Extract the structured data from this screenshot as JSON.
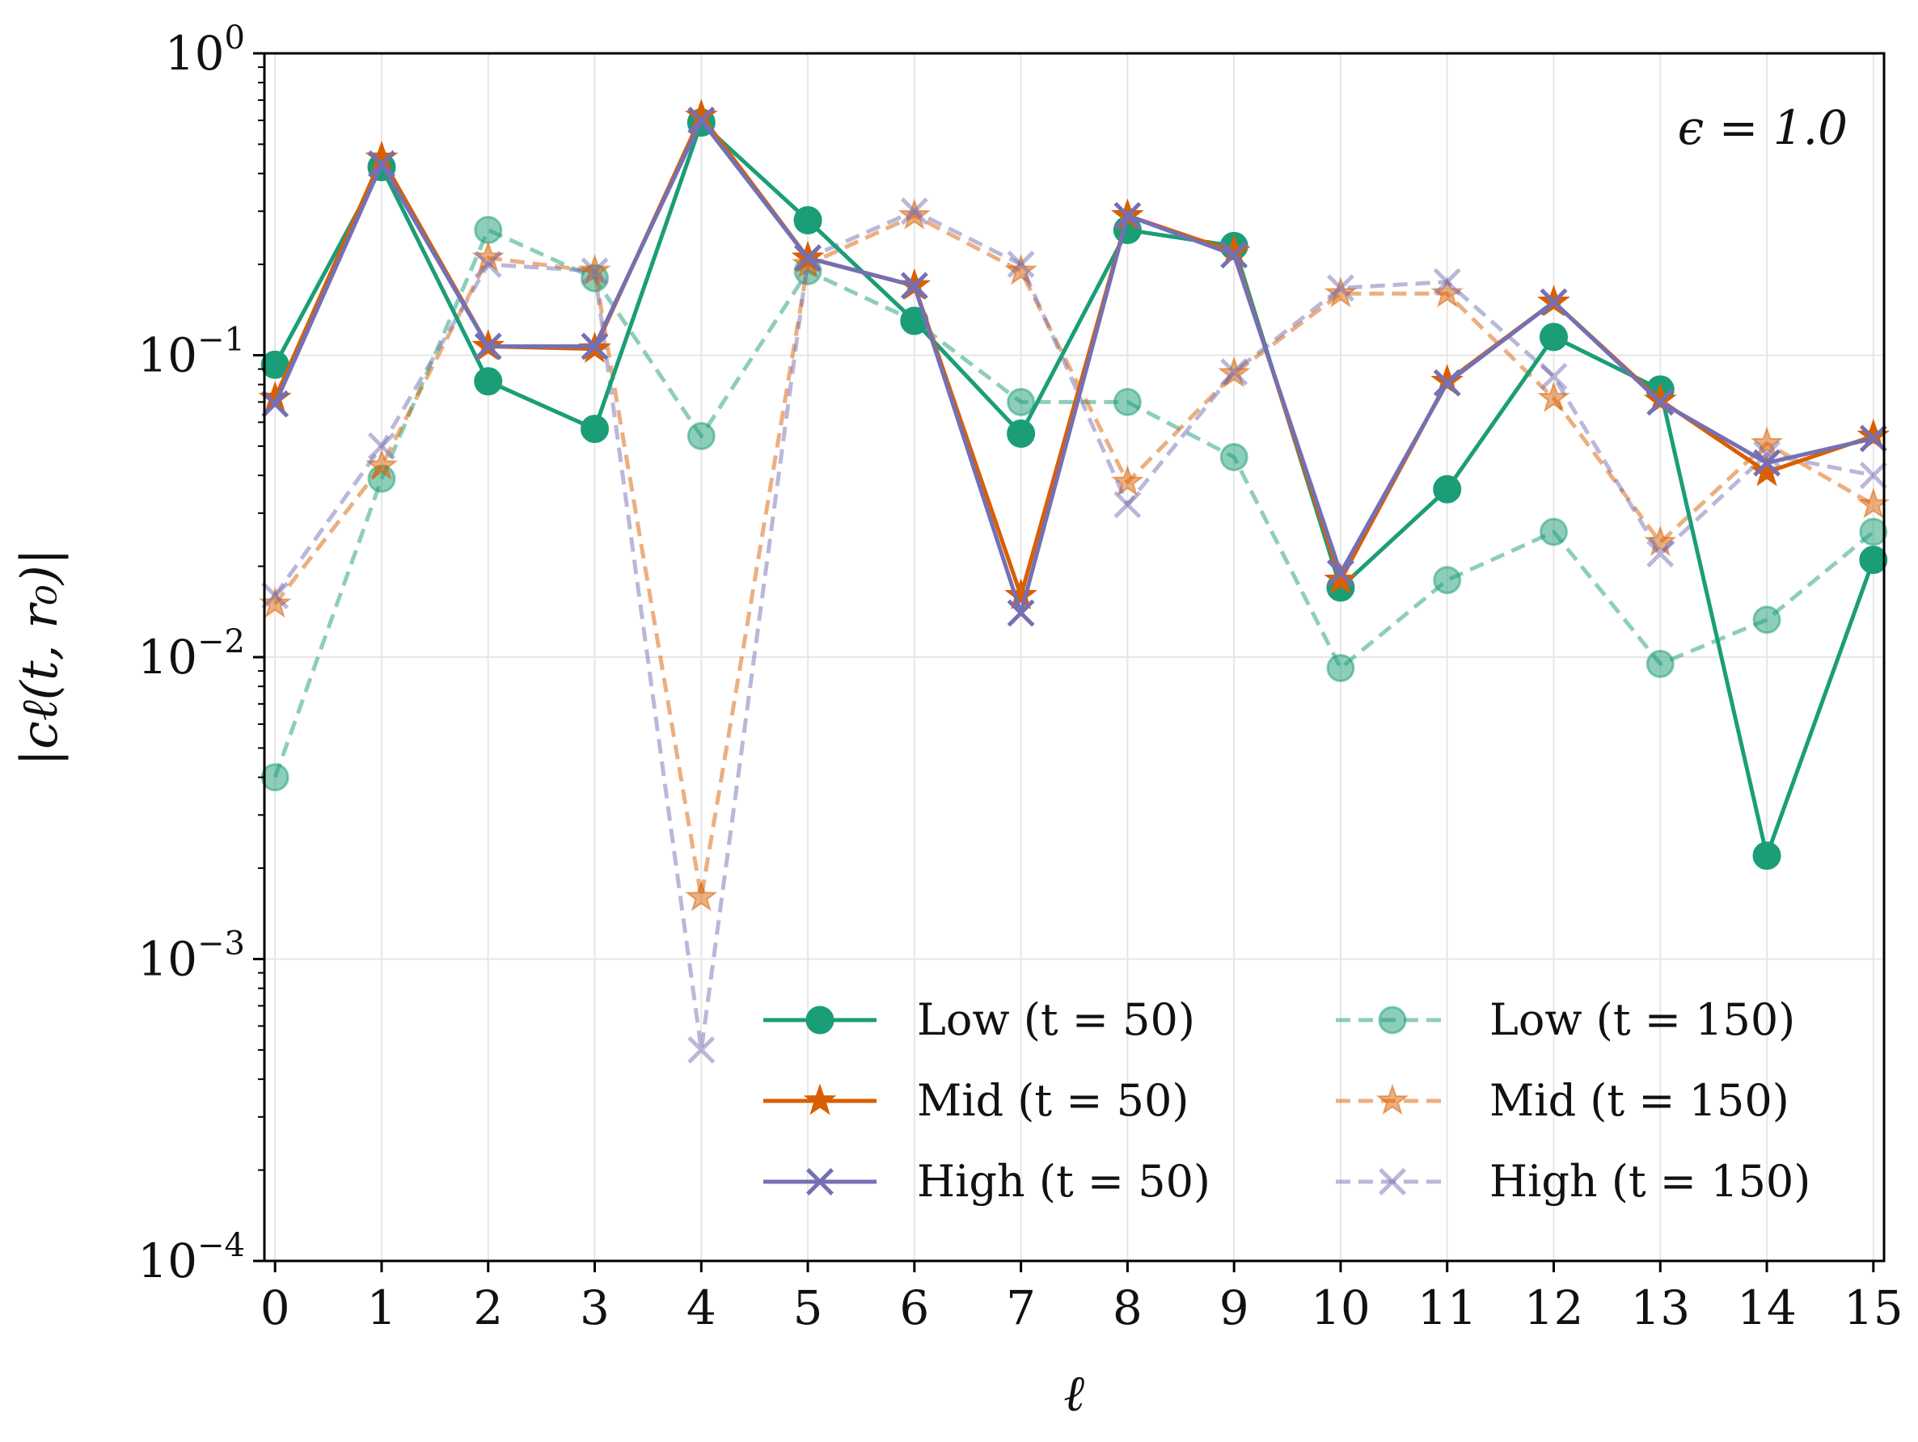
{
  "chart_data": {
    "type": "line",
    "title": "",
    "xlabel": "ℓ",
    "ylabel": "|cℓ(t, r₀)|",
    "yscale": "log",
    "xlim": [
      -0.1,
      15.1
    ],
    "ylim": [
      0.0001,
      1
    ],
    "xticks": [
      0,
      1,
      2,
      3,
      4,
      5,
      6,
      7,
      8,
      9,
      10,
      11,
      12,
      13,
      14,
      15
    ],
    "xtick_labels": [
      "0",
      "1",
      "2",
      "3",
      "4",
      "5",
      "6",
      "7",
      "8",
      "9",
      "10",
      "11",
      "12",
      "13",
      "14",
      "15"
    ],
    "yticks": [
      0.0001,
      0.001,
      0.01,
      0.1,
      1
    ],
    "ytick_labels": [
      {
        "base": "10",
        "exp": "−4"
      },
      {
        "base": "10",
        "exp": "−3"
      },
      {
        "base": "10",
        "exp": "−2"
      },
      {
        "base": "10",
        "exp": "−1"
      },
      {
        "base": "10",
        "exp": "0"
      }
    ],
    "annotation": "ϵ = 1.0",
    "grid": true,
    "legend_position": "lower-right",
    "x": [
      0,
      1,
      2,
      3,
      4,
      5,
      6,
      7,
      8,
      9,
      10,
      11,
      12,
      13,
      14,
      15
    ],
    "series": [
      {
        "name": "Low  (t = 50)",
        "color": "#1b9e77",
        "marker": "circle",
        "dash": "solid",
        "alpha": 1.0,
        "values": [
          0.093,
          0.42,
          0.082,
          0.057,
          0.59,
          0.28,
          0.13,
          0.055,
          0.26,
          0.23,
          0.017,
          0.036,
          0.115,
          0.077,
          0.0022,
          0.021
        ]
      },
      {
        "name": "Mid   (t = 50)",
        "color": "#d95f02",
        "marker": "star",
        "dash": "solid",
        "alpha": 1.0,
        "values": [
          0.072,
          0.45,
          0.107,
          0.105,
          0.62,
          0.21,
          0.17,
          0.016,
          0.29,
          0.22,
          0.018,
          0.082,
          0.15,
          0.071,
          0.041,
          0.054
        ]
      },
      {
        "name": "High (t = 50)",
        "color": "#7570b3",
        "marker": "x",
        "dash": "solid",
        "alpha": 1.0,
        "values": [
          0.069,
          0.43,
          0.107,
          0.107,
          0.6,
          0.21,
          0.17,
          0.014,
          0.29,
          0.215,
          0.019,
          0.081,
          0.15,
          0.07,
          0.044,
          0.053
        ]
      },
      {
        "name": "Low  (t = 150)",
        "color": "#1b9e77",
        "marker": "circle",
        "dash": "dashed",
        "alpha": 0.5,
        "values": [
          0.004,
          0.039,
          0.26,
          0.18,
          0.054,
          0.19,
          0.13,
          0.07,
          0.07,
          0.046,
          0.0092,
          0.018,
          0.026,
          0.0095,
          0.0133,
          0.026
        ]
      },
      {
        "name": "Mid   (t = 150)",
        "color": "#d95f02",
        "marker": "star",
        "dash": "dashed",
        "alpha": 0.5,
        "values": [
          0.015,
          0.043,
          0.21,
          0.19,
          0.0016,
          0.2,
          0.29,
          0.19,
          0.038,
          0.087,
          0.16,
          0.16,
          0.072,
          0.024,
          0.051,
          0.032
        ]
      },
      {
        "name": "High (t = 150)",
        "color": "#7570b3",
        "marker": "x",
        "dash": "dashed",
        "alpha": 0.5,
        "values": [
          0.016,
          0.05,
          0.2,
          0.19,
          0.0005,
          0.21,
          0.3,
          0.2,
          0.032,
          0.088,
          0.167,
          0.175,
          0.085,
          0.022,
          0.047,
          0.04
        ]
      }
    ]
  }
}
